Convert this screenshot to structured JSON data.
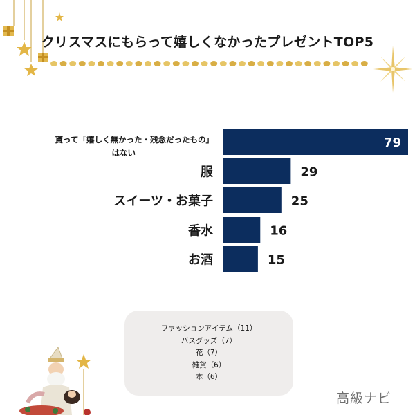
{
  "title": "クリスマスにもらって嬉しくなかったプレゼントTOP5",
  "chart_data": {
    "type": "bar",
    "orientation": "horizontal",
    "categories": [
      "貰って「嬉しく無かった・残念だったもの」はない",
      "服",
      "スイーツ・お菓子",
      "香水",
      "お酒"
    ],
    "values": [
      79,
      29,
      25,
      16,
      15
    ],
    "xlim": [
      0,
      79
    ],
    "grid": false,
    "bar_color": "#0c2d5e",
    "label_color_inside": "#ffffff",
    "label_color_outside": "#1a1a1a"
  },
  "others": {
    "items": [
      "ファッションアイテム（11）",
      "バスグッズ（7）",
      "花（7）",
      "雑貨（6）",
      "本（6）"
    ]
  },
  "brand": "高級ナビ",
  "colors": {
    "accent_gold": "#d6a93a",
    "panel_bg": "#efedec"
  }
}
